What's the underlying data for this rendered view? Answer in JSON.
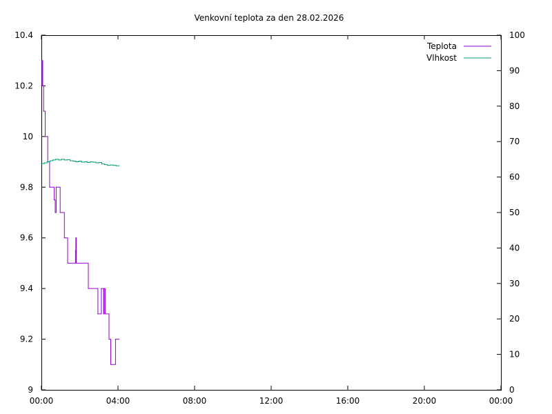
{
  "chart_data": {
    "type": "line",
    "title": "Venkovní teplota za den 28.02.2026",
    "x_ticks": [
      "00:00",
      "04:00",
      "08:00",
      "12:00",
      "16:00",
      "20:00",
      "00:00"
    ],
    "xlim_hours": [
      0,
      24
    ],
    "y_left_ticks": [
      "9",
      "9.2",
      "9.4",
      "9.6",
      "9.8",
      "10",
      "10.2",
      "10.4"
    ],
    "ylim_left": [
      9,
      10.4
    ],
    "y_right_ticks": [
      "0",
      "10",
      "20",
      "30",
      "40",
      "50",
      "60",
      "70",
      "80",
      "90",
      "100"
    ],
    "ylim_right": [
      0,
      100
    ],
    "legend_position": "top-right",
    "series": [
      {
        "name": "Teplota",
        "axis": "left",
        "color": "#9400d3",
        "step": true,
        "points": [
          {
            "t": 0.0,
            "v": 10.2
          },
          {
            "t": 0.03,
            "v": 10.3
          },
          {
            "t": 0.07,
            "v": 10.2
          },
          {
            "t": 0.12,
            "v": 10.1
          },
          {
            "t": 0.2,
            "v": 10.0
          },
          {
            "t": 0.33,
            "v": 9.9
          },
          {
            "t": 0.43,
            "v": 9.8
          },
          {
            "t": 0.67,
            "v": 9.75
          },
          {
            "t": 0.72,
            "v": 9.7
          },
          {
            "t": 0.77,
            "v": 9.8
          },
          {
            "t": 0.98,
            "v": 9.7
          },
          {
            "t": 1.2,
            "v": 9.6
          },
          {
            "t": 1.37,
            "v": 9.5
          },
          {
            "t": 1.78,
            "v": 9.55
          },
          {
            "t": 1.8,
            "v": 9.6
          },
          {
            "t": 1.82,
            "v": 9.5
          },
          {
            "t": 2.45,
            "v": 9.4
          },
          {
            "t": 2.95,
            "v": 9.3
          },
          {
            "t": 3.13,
            "v": 9.4
          },
          {
            "t": 3.25,
            "v": 9.3
          },
          {
            "t": 3.28,
            "v": 9.4
          },
          {
            "t": 3.33,
            "v": 9.3
          },
          {
            "t": 3.53,
            "v": 9.2
          },
          {
            "t": 3.62,
            "v": 9.1
          },
          {
            "t": 3.87,
            "v": 9.2
          },
          {
            "t": 4.05,
            "v": 9.2
          }
        ]
      },
      {
        "name": "Vlhkost",
        "axis": "right",
        "color": "#009e73",
        "step": true,
        "points": [
          {
            "t": 0.0,
            "v": 63.8
          },
          {
            "t": 0.15,
            "v": 64.0
          },
          {
            "t": 0.3,
            "v": 64.3
          },
          {
            "t": 0.45,
            "v": 64.6
          },
          {
            "t": 0.6,
            "v": 64.8
          },
          {
            "t": 0.75,
            "v": 65.0
          },
          {
            "t": 0.9,
            "v": 64.8
          },
          {
            "t": 1.05,
            "v": 65.0
          },
          {
            "t": 1.2,
            "v": 64.8
          },
          {
            "t": 1.35,
            "v": 64.9
          },
          {
            "t": 1.5,
            "v": 64.6
          },
          {
            "t": 1.65,
            "v": 64.5
          },
          {
            "t": 1.8,
            "v": 64.3
          },
          {
            "t": 1.95,
            "v": 64.5
          },
          {
            "t": 2.1,
            "v": 64.2
          },
          {
            "t": 2.25,
            "v": 64.3
          },
          {
            "t": 2.4,
            "v": 64.1
          },
          {
            "t": 2.55,
            "v": 64.3
          },
          {
            "t": 2.7,
            "v": 64.2
          },
          {
            "t": 2.85,
            "v": 64.0
          },
          {
            "t": 3.0,
            "v": 64.1
          },
          {
            "t": 3.15,
            "v": 63.7
          },
          {
            "t": 3.3,
            "v": 63.5
          },
          {
            "t": 3.45,
            "v": 63.3
          },
          {
            "t": 3.6,
            "v": 63.4
          },
          {
            "t": 3.75,
            "v": 63.3
          },
          {
            "t": 3.9,
            "v": 63.2
          },
          {
            "t": 4.05,
            "v": 63.2
          }
        ]
      }
    ]
  }
}
